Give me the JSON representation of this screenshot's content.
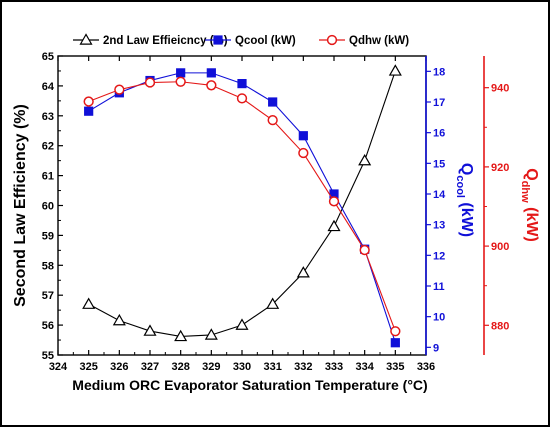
{
  "chart_data": {
    "type": "line",
    "xlabel": "Medium ORC Evaporator Saturation Temperature (°C)",
    "xlim": [
      324,
      336
    ],
    "xticks": [
      324,
      325,
      326,
      327,
      328,
      329,
      330,
      331,
      332,
      333,
      334,
      335,
      336
    ],
    "x": [
      325,
      326,
      327,
      328,
      329,
      330,
      331,
      332,
      333,
      334,
      335
    ],
    "axes": {
      "left": {
        "label": "Second Law Efficiency (%)",
        "ylim": [
          55,
          65
        ],
        "ticks": [
          55,
          56,
          57,
          58,
          59,
          60,
          61,
          62,
          63,
          64,
          65
        ],
        "color": "#000000"
      },
      "right1": {
        "label_main": "Q",
        "label_sub": "cool",
        "label_unit": " (kW)",
        "ylim": [
          8.75,
          18.5
        ],
        "ticks": [
          9,
          10,
          11,
          12,
          13,
          14,
          15,
          16,
          17,
          18
        ],
        "color": "#1010d8"
      },
      "right2": {
        "label_main": "Q",
        "label_sub": "dhw",
        "label_unit": " (kW)",
        "ylim": [
          872.5,
          948
        ],
        "ticks": [
          880,
          900,
          920,
          940
        ],
        "color": "#e41818"
      }
    },
    "series": [
      {
        "name": "2nd Law Effieicncy (%)",
        "axis": "left",
        "color": "#000000",
        "marker": "triangle-open",
        "values": [
          56.7,
          56.15,
          55.8,
          55.62,
          55.67,
          56.0,
          56.7,
          57.75,
          59.3,
          61.5,
          64.5
        ]
      },
      {
        "name": "Qcool (kW)",
        "axis": "right1",
        "color": "#1010d8",
        "marker": "square-filled",
        "values": [
          16.7,
          17.3,
          17.7,
          17.95,
          17.95,
          17.6,
          17.0,
          15.9,
          14.0,
          12.2,
          9.15
        ]
      },
      {
        "name": "Qdhw (kW)",
        "axis": "right2",
        "color": "#e41818",
        "marker": "circle-open",
        "values": [
          936.5,
          939.5,
          941.3,
          941.5,
          940.6,
          937.3,
          931.8,
          923.5,
          911.3,
          899.0,
          878.5
        ]
      }
    ],
    "legend": {
      "placement": "top",
      "labels": [
        "2nd Law Effieicncy (%)",
        "Qcool (kW)",
        "Qdhw (kW)"
      ]
    },
    "grid": false
  }
}
